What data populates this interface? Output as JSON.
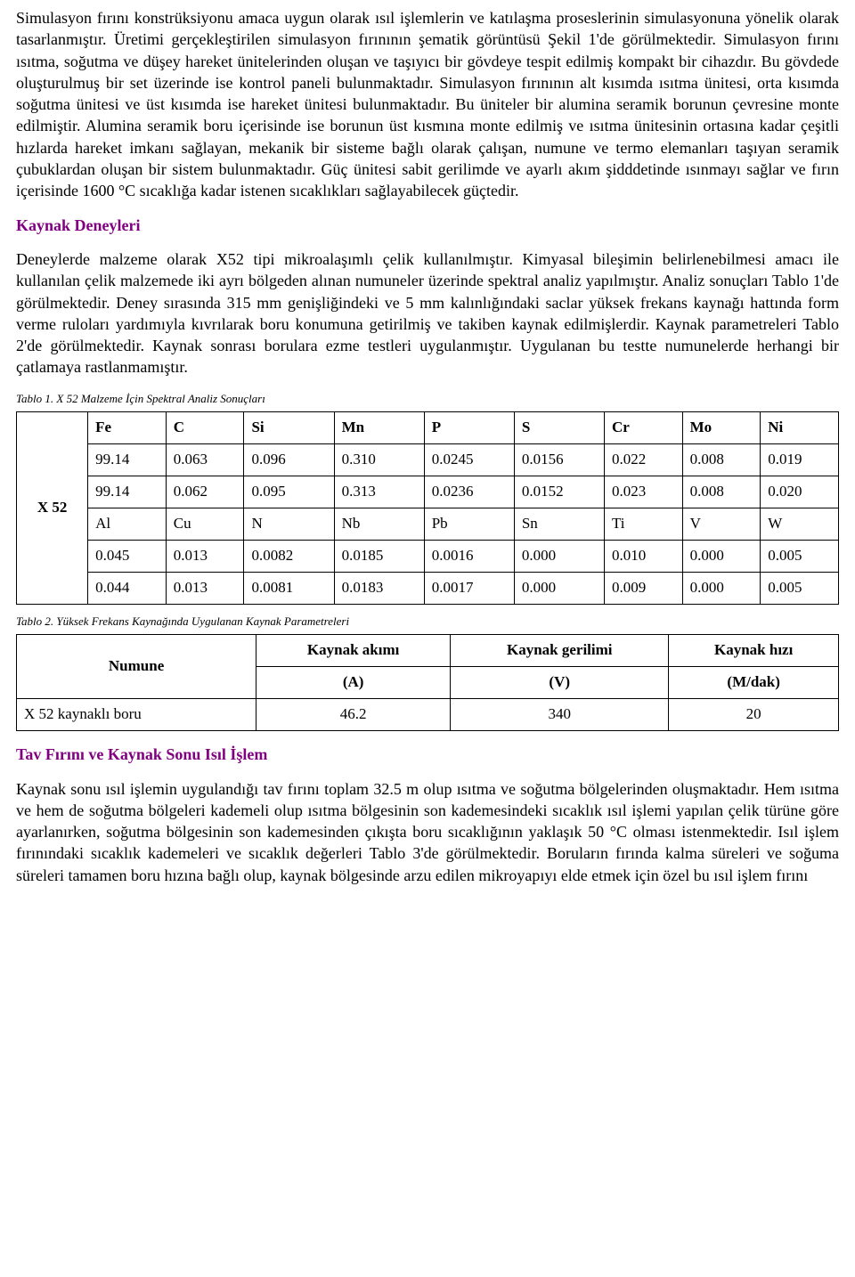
{
  "para1": "Simulasyon fırını konstrüksiyonu amaca uygun olarak ısıl işlemlerin ve katılaşma proseslerinin simulasyonuna yönelik olarak tasarlanmıştır. Üretimi gerçekleştirilen simulasyon fırınının şematik görüntüsü Şekil 1'de görülmektedir. Simulasyon fırını ısıtma, soğutma ve düşey hareket ünitelerinden oluşan ve taşıyıcı bir gövdeye tespit edilmiş kompakt bir cihazdır. Bu gövdede oluşturulmuş bir set üzerinde ise kontrol paneli bulunmaktadır. Simulasyon fırınının alt kısımda ısıtma ünitesi, orta kısımda soğutma ünitesi ve üst kısımda ise hareket ünitesi bulunmaktadır. Bu üniteler bir alumina seramik borunun çevresine monte edilmiştir. Alumina seramik boru içerisinde ise borunun üst kısmına monte edilmiş ve ısıtma ünitesinin ortasına kadar çeşitli hızlarda hareket imkanı sağlayan, mekanik bir sisteme bağlı olarak çalışan, numune ve termo elemanları taşıyan seramik çubuklardan oluşan bir sistem bulunmaktadır. Güç ünitesi sabit gerilimde ve ayarlı akım şidddetinde ısınmayı sağlar ve fırın içerisinde 1600 °C sıcaklığa kadar istenen sıcaklıkları sağlayabilecek güçtedir.",
  "heading1": "Kaynak Deneyleri",
  "para2": "Deneylerde malzeme olarak X52 tipi mikroalaşımlı çelik kullanılmıştır. Kimyasal bileşimin belirlenebilmesi amacı ile kullanılan çelik malzemede iki ayrı bölgeden alınan numuneler üzerinde spektral analiz yapılmıştır. Analiz sonuçları Tablo 1'de görülmektedir. Deney sırasında 315 mm genişliğindeki ve 5 mm kalınlığındaki saclar yüksek frekans kaynağı hattında form verme ruloları yardımıyla kıvrılarak boru konumuna getirilmiş ve takiben kaynak edilmişlerdir. Kaynak parametreleri Tablo 2'de görülmektedir. Kaynak sonrası borulara ezme testleri uygulanmıştır. Uygulanan bu testte numunelerde herhangi bir çatlamaya rastlanmamıştır.",
  "table1": {
    "caption": "Tablo 1. X 52 Malzeme İçin Spektral Analiz Sonuçları",
    "rowhead": "X 52",
    "h1": [
      "Fe",
      "C",
      "Si",
      "Mn",
      "P",
      "S",
      "Cr",
      "Mo",
      "Ni"
    ],
    "r1": [
      "99.14",
      "0.063",
      "0.096",
      "0.310",
      "0.0245",
      "0.0156",
      "0.022",
      "0.008",
      "0.019"
    ],
    "r2": [
      "99.14",
      "0.062",
      "0.095",
      "0.313",
      "0.0236",
      "0.0152",
      "0.023",
      "0.008",
      "0.020"
    ],
    "h2": [
      "Al",
      "Cu",
      "N",
      "Nb",
      "Pb",
      "Sn",
      "Ti",
      "V",
      "W"
    ],
    "r3": [
      "0.045",
      "0.013",
      "0.0082",
      "0.0185",
      "0.0016",
      "0.000",
      "0.010",
      "0.000",
      "0.005"
    ],
    "r4": [
      "0.044",
      "0.013",
      "0.0081",
      "0.0183",
      "0.0017",
      "0.000",
      "0.009",
      "0.000",
      "0.005"
    ]
  },
  "table2": {
    "caption": "Tablo 2. Yüksek Frekans Kaynağında Uygulanan Kaynak Parametreleri",
    "h": {
      "c0": "Numune",
      "c1a": "Kaynak akımı",
      "c1b": "(A)",
      "c2a": "Kaynak gerilimi",
      "c2b": "(V)",
      "c3a": "Kaynak hızı",
      "c3b": "(M/dak)"
    },
    "r": {
      "c0": "X 52 kaynaklı boru",
      "c1": "46.2",
      "c2": "340",
      "c3": "20"
    }
  },
  "heading2": "Tav Fırını ve Kaynak Sonu Isıl İşlem",
  "para3": "Kaynak sonu ısıl işlemin uygulandığı tav fırını toplam 32.5 m olup ısıtma ve soğutma bölgelerinden oluşmaktadır. Hem ısıtma ve hem de soğutma bölgeleri kademeli olup ısıtma bölgesinin son kademesindeki sıcaklık ısıl işlemi yapılan çelik türüne göre ayarlanırken, soğutma bölgesinin son kademesinden çıkışta boru sıcaklığının yaklaşık 50 °C olması istenmektedir. Isıl işlem fırınındaki sıcaklık kademeleri ve sıcaklık değerleri Tablo 3'de görülmektedir. Boruların fırında kalma süreleri ve soğuma süreleri tamamen boru hızına bağlı olup, kaynak bölgesinde arzu edilen mikroyapıyı elde etmek için özel bu ısıl işlem fırını"
}
